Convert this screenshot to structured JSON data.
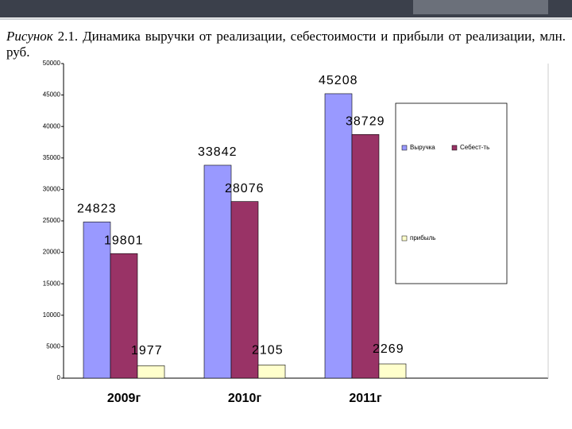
{
  "chart_data": {
    "type": "bar",
    "figure_label": "Рисунок",
    "title": "2.1. Динамика выручки от реализации, себестоимости и прибыли от реализации, млн. руб.",
    "categories": [
      "2009г",
      "2010г",
      "2011г"
    ],
    "series": [
      {
        "name": "Выручка",
        "color": "#9999ff",
        "values": [
          24823,
          33842,
          45208
        ]
      },
      {
        "name": "Себест-ть",
        "color": "#993366",
        "values": [
          19801,
          28076,
          38729
        ]
      },
      {
        "name": "прибыль",
        "color": "#ffffcc",
        "values": [
          1977,
          2105,
          2269
        ]
      }
    ],
    "ylim": [
      0,
      50000
    ],
    "yticks": [
      0,
      5000,
      10000,
      15000,
      20000,
      25000,
      30000,
      35000,
      40000,
      45000,
      50000
    ],
    "grid": false,
    "legend": "right"
  }
}
